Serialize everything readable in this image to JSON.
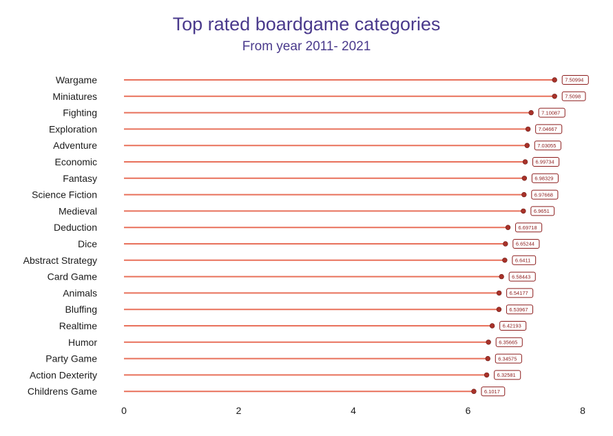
{
  "chart_data": {
    "type": "lollipop",
    "title": "Top rated boardgame categories",
    "subtitle": "From year 2011- 2021",
    "xlabel": "",
    "ylabel": "",
    "xlim": [
      0,
      8
    ],
    "x_ticks": [
      0,
      2,
      4,
      6,
      8
    ],
    "grid": false,
    "categories": [
      "Wargame",
      "Miniatures",
      "Fighting",
      "Exploration",
      "Adventure",
      "Economic",
      "Fantasy",
      "Science Fiction",
      "Medieval",
      "Deduction",
      "Dice",
      "Abstract Strategy",
      "Card Game",
      "Animals",
      "Bluffing",
      "Realtime",
      "Humor",
      "Party Game",
      "Action  Dexterity",
      "Childrens Game"
    ],
    "values": [
      7.50994,
      7.5098,
      7.10087,
      7.04667,
      7.03055,
      6.99734,
      6.98329,
      6.97668,
      6.9651,
      6.69718,
      6.65244,
      6.6411,
      6.58443,
      6.54177,
      6.53967,
      6.42193,
      6.35665,
      6.34575,
      6.32581,
      6.1017
    ],
    "value_labels": [
      "7.50994",
      "7.5098",
      "7.10087",
      "7.04667",
      "7.03055",
      "6.99734",
      "6.98329",
      "6.97668",
      "6.9651",
      "6.69718",
      "6.65244",
      "6.6411",
      "6.58443",
      "6.54177",
      "6.53967",
      "6.42193",
      "6.35665",
      "6.34575",
      "6.32581",
      "6.1017"
    ],
    "colors": {
      "stem": "#e8705a",
      "point": "#a8322a",
      "label_border": "#8b1a1a",
      "label_text": "#8b1a1a",
      "title": "#4a3a8c"
    }
  }
}
